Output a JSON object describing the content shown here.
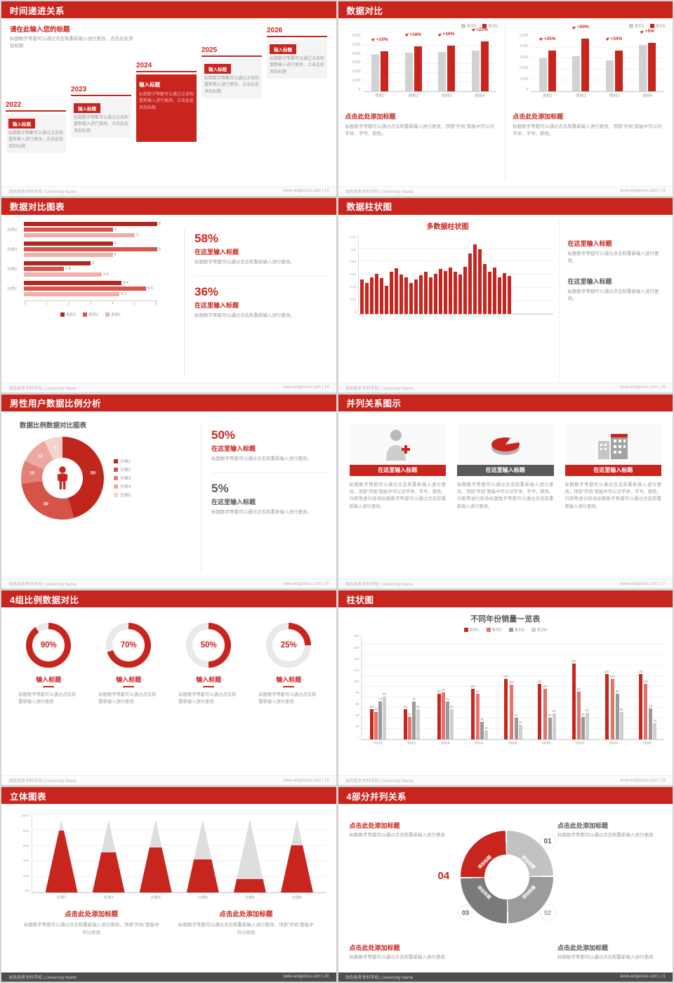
{
  "theme": {
    "red": "#c9251f",
    "dark": "#595959",
    "gray_bar": "#c9c9c9"
  },
  "footer": {
    "left": "浅色商务专科学校 | University Name",
    "site": "www.aotgenius.com"
  },
  "s12": {
    "page": "12",
    "header": "时间递进关系",
    "intro_title": "请在此输入您的标题",
    "intro_text": "标题数字等都可以通过点击和重新输入进行更改，点击此处添加标题",
    "items": [
      {
        "year": "2022",
        "label": "输入标题",
        "text": "标题数字等都可以通过点击和重新输入进行更改，点击此处添加标题",
        "style": "light"
      },
      {
        "year": "2023",
        "label": "输入标题",
        "text": "标题数字等都可以通过点击和重新输入进行更改，点击此处添加标题",
        "style": "light"
      },
      {
        "year": "2024",
        "label": "输入标题",
        "text": "标题数字等都可以通过点击和重新输入进行更改，点击此处添加标题",
        "style": "solid"
      },
      {
        "year": "2025",
        "label": "输入标题",
        "text": "标题数字等都可以通过点击和重新输入进行更改，点击此处添加标题",
        "style": "light"
      },
      {
        "year": "2026",
        "label": "输入标题",
        "text": "标题数字等都可以通过点击和重新输入进行更改，点击此处添加标题",
        "style": "light"
      }
    ]
  },
  "s13": {
    "page": "13",
    "header": "数据对比",
    "charts": [
      {
        "legend": [
          "系列1",
          "系列2"
        ],
        "categories": [
          "类别1",
          "类别2",
          "类别3",
          "类别4"
        ],
        "series1": [
          4000,
          4200,
          4300,
          4500
        ],
        "series2": [
          4400,
          4950,
          5000,
          5500
        ],
        "deltas": [
          "+10%",
          "+18%",
          "+16%",
          "+22%"
        ],
        "ymax": 6000,
        "yticks": [
          "6,000",
          "5,000",
          "4,000",
          "3,000",
          "2,000",
          "1,000",
          "0"
        ],
        "title": "点击此处添加标题",
        "text": "标题数字等都可以通过点击和重新输入进行更改，顶部“开始”面板中可以对字体、字号、颜色。"
      },
      {
        "legend": [
          "系列1",
          "系列2"
        ],
        "categories": [
          "类别1",
          "类别2",
          "类别3",
          "类别4"
        ],
        "series1": [
          3000,
          3200,
          2800,
          4200
        ],
        "series2": [
          3750,
          4800,
          3750,
          4400
        ],
        "deltas": [
          "+25%",
          "+50%",
          "+34%",
          "+5%"
        ],
        "ymax": 5000,
        "yticks": [
          "5,000",
          "4,000",
          "3,000",
          "2,000",
          "1,000",
          "0"
        ],
        "title": "点击此处添加标题",
        "text": "标题数字等都可以通过点击和重新输入进行更改，顶部“开始”面板中可以对字体、字号、颜色。"
      }
    ]
  },
  "s14": {
    "page": "14",
    "header": "数据对比图表",
    "categories": [
      "分类4",
      "分类3",
      "分类2",
      "分类1"
    ],
    "series": [
      {
        "name": "类别3",
        "values": [
          6,
          4,
          3,
          4.4
        ]
      },
      {
        "name": "类别2",
        "values": [
          4,
          6,
          1.8,
          5.5
        ]
      },
      {
        "name": "类别1",
        "values": [
          5,
          4,
          3.5,
          4.3
        ]
      }
    ],
    "colors": [
      "#b3261e",
      "#d9554c",
      "#efb0ab"
    ],
    "xmax": 6,
    "xticks": [
      "0",
      "1",
      "2",
      "3",
      "4",
      "5",
      "6"
    ],
    "stats": [
      {
        "pct": "58%",
        "title": "在这里输入标题",
        "text": "标题数字等都可以通过点击和重新输入进行更改。"
      },
      {
        "pct": "36%",
        "title": "在这里输入标题",
        "text": "标题数字等都可以通过点击和重新输入进行更改。"
      }
    ]
  },
  "s15": {
    "page": "15",
    "header": "数据柱状图",
    "chart_title": "多数据柱状图",
    "ymax": 1200,
    "yticks": [
      "1.2K",
      "1.0K",
      "0.8K",
      "0.6K",
      "0.4K",
      "0.2K",
      "0"
    ],
    "values": [
      520,
      470,
      560,
      610,
      540,
      430,
      640,
      690,
      600,
      560,
      470,
      520,
      590,
      640,
      560,
      610,
      680,
      650,
      700,
      640,
      600,
      720,
      920,
      1060,
      980,
      760,
      640,
      700,
      560,
      620,
      580
    ],
    "blocks": [
      {
        "title": "在这里输入标题",
        "text": "标题数字等都可以通过点击和重新输入进行更改。",
        "accent": "red"
      },
      {
        "title": "在这里输入标题",
        "text": "标题数字等都可以通过点击和重新输入进行更改。",
        "accent": "dark"
      }
    ]
  },
  "s16": {
    "page": "16",
    "header": "男性用户数据比例分析",
    "chart_title": "数据比例数据对比图表",
    "slices": [
      {
        "name": "分类1",
        "value": 50,
        "color": "#c0261c"
      },
      {
        "name": "分类2",
        "value": 30,
        "color": "#d4544a"
      },
      {
        "name": "分类3",
        "value": 10,
        "color": "#e28079"
      },
      {
        "name": "分类4",
        "value": 12,
        "color": "#eda8a2"
      },
      {
        "name": "分类5",
        "value": 8,
        "color": "#f6d2ce"
      }
    ],
    "stats": [
      {
        "pct": "50%",
        "title": "在这里输入标题",
        "text": "标题数字等都可以通过点击和重新输入进行更改。"
      },
      {
        "pct": "5%",
        "title": "在这里输入标题",
        "text": "标题数字等都可以通过点击和重新输入进行更改。"
      }
    ]
  },
  "s17": {
    "page": "17",
    "header": "并列关系图示",
    "items": [
      {
        "icon": "nurse-icon",
        "title": "在这里输入标题",
        "accent": "red",
        "text": "标题数字等都可以通过点击和重新输入进行更改，顶部“开始”面板中可以对字体、字号、颜色、行距等进行修改标题数字等都可以通过点击和重新输入进行更改。"
      },
      {
        "icon": "pie-3d-icon",
        "title": "在这里输入标题",
        "accent": "dark",
        "text": "标题数字等都可以通过点击和重新输入进行更改，顶部“开始”面板中可以对字体、字号、颜色、行距等进行修改标题数字等都可以通过点击和重新输入进行更改。"
      },
      {
        "icon": "building-icon",
        "title": "在这里输入标题",
        "accent": "red",
        "text": "标题数字等都可以通过点击和重新输入进行更改，顶部“开始”面板中可以对字体、字号、颜色、行距等进行修改标题数字等都可以通过点击和重新输入进行更改。"
      }
    ]
  },
  "s18": {
    "page": "18",
    "header": "4组比例数据对比",
    "items": [
      {
        "pct": 90,
        "label": "90%",
        "title": "输入标题",
        "text": "标题数字等都可以通过点击和重新输入进行更改"
      },
      {
        "pct": 70,
        "label": "70%",
        "title": "输入标题",
        "text": "标题数字等都可以通过点击和重新输入进行更改"
      },
      {
        "pct": 50,
        "label": "50%",
        "title": "输入标题",
        "text": "标题数字等都可以通过点击和重新输入进行更改"
      },
      {
        "pct": 25,
        "label": "25%",
        "title": "输入标题",
        "text": "标题数字等都可以通过点击和重新输入进行更改"
      }
    ]
  },
  "s19": {
    "page": "19",
    "header": "柱状图",
    "chart_title": "不同年份销量一览表",
    "years": [
      "2010",
      "2012",
      "2014",
      "2016",
      "2018",
      "2020",
      "2022",
      "2024",
      "2026"
    ],
    "series": [
      {
        "name": "系列1",
        "values": [
          60,
          60,
          90,
          100,
          120,
          110,
          150,
          130,
          130
        ]
      },
      {
        "name": "系列2",
        "values": [
          55,
          45,
          93,
          90,
          108,
          100,
          95,
          120,
          110
        ]
      },
      {
        "name": "系列3",
        "values": [
          75,
          75,
          75,
          35,
          43,
          43,
          45,
          90,
          62
        ]
      },
      {
        "name": "系列4",
        "values": [
          85,
          60,
          60,
          18,
          30,
          52,
          53,
          55,
          33
        ]
      }
    ],
    "colors": [
      "#c9251f",
      "#e2746c",
      "#9a9a9a",
      "#cfcfcf"
    ],
    "ymax": 180,
    "yticks": [
      "180",
      "160",
      "140",
      "120",
      "100",
      "80",
      "60",
      "40",
      "20",
      "0"
    ]
  },
  "s20": {
    "page": "20",
    "header": "立体图表",
    "categories": [
      "分类1",
      "分类2",
      "分类3",
      "分类4",
      "分类5",
      "分类6"
    ],
    "fill_pct": [
      85,
      55,
      62,
      45,
      18,
      65
    ],
    "yticks": [
      "100%",
      "80%",
      "60%",
      "40%",
      "20%",
      "0%"
    ],
    "blocks": [
      {
        "title": "点击此处添加标题",
        "text": "标题数字等都可以通过点击和重新输入进行更改，顶部“开始”面板中可以修改"
      },
      {
        "title": "点击此处添加标题",
        "text": "标题数字等都可以通过点击和重新输入进行更改，顶部“开始”面板中可以修改"
      }
    ]
  },
  "s21": {
    "page": "21",
    "header": "4部分并列关系",
    "numbers": [
      "01",
      "02",
      "03",
      "04"
    ],
    "segment_label": "添加标题",
    "segment_colors": [
      "#c2c2c2",
      "#9b9b9b",
      "#7a7a7a",
      "#c9251f"
    ],
    "blocks": [
      {
        "title": "点击此处添加标题",
        "text": "标题数字等都可以通过点击和重新输入进行更改",
        "accent": "red",
        "pos": "tl"
      },
      {
        "title": "点击此处添加标题",
        "text": "标题数字等都可以通过点击和重新输入进行更改",
        "accent": "dark",
        "pos": "tr"
      },
      {
        "title": "点击此处添加标题",
        "text": "标题数字等都可以通过点击和重新输入进行更改",
        "accent": "red",
        "pos": "bl"
      },
      {
        "title": "点击此处添加标题",
        "text": "标题数字等都可以通过点击和重新输入进行更改",
        "accent": "dark",
        "pos": "br"
      }
    ]
  }
}
